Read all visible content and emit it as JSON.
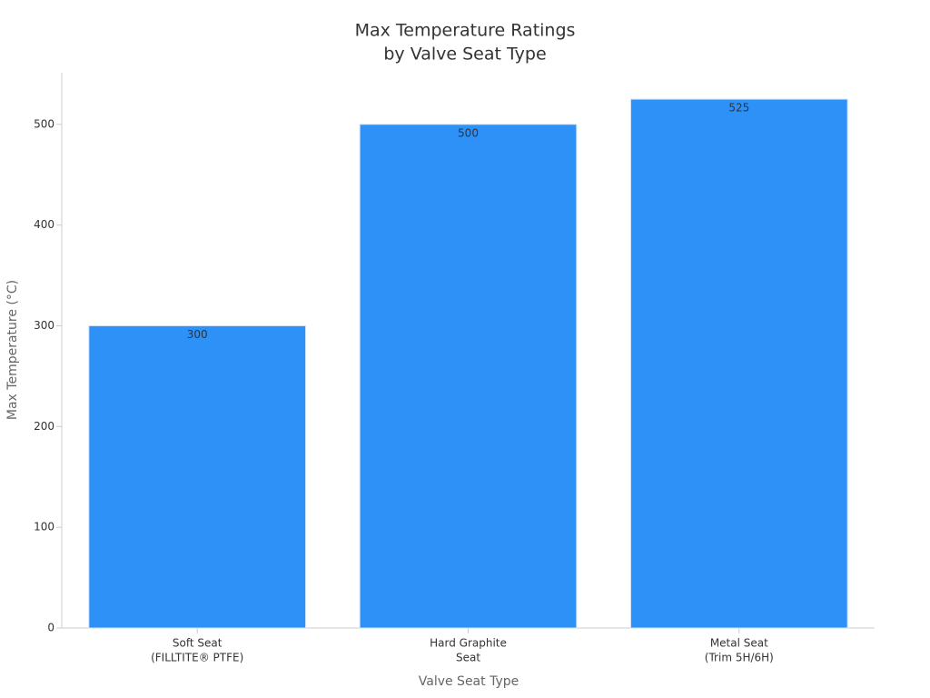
{
  "chart_data": {
    "type": "bar",
    "title": [
      "Max Temperature Ratings",
      "by Valve Seat Type"
    ],
    "categories": [
      [
        "Soft Seat",
        "(FILLTITE® PTFE)"
      ],
      [
        "Hard Graphite",
        "Seat"
      ],
      [
        "Metal Seat",
        "(Trim 5H/6H)"
      ]
    ],
    "values": [
      300,
      500,
      525
    ],
    "color": "#2e91f8",
    "xlabel": "Valve Seat Type",
    "ylabel": "Max Temperature (°C)",
    "ylim": [
      0,
      551.25
    ],
    "yticks": [
      0,
      100,
      200,
      300,
      400,
      500
    ],
    "grid": false
  }
}
